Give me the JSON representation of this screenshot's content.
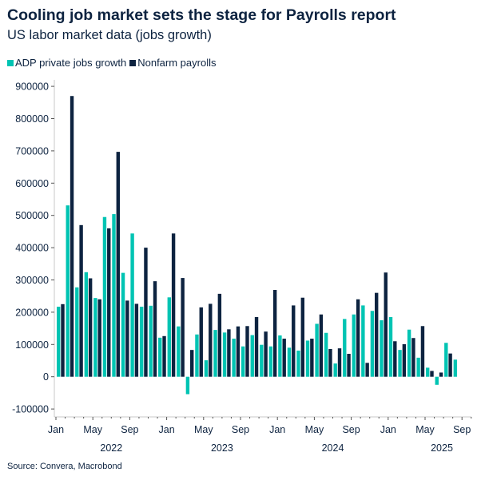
{
  "chart_data": {
    "type": "bar",
    "title": "Cooling job market sets the stage for Payrolls report",
    "subtitle": "US labor market data (jobs growth)",
    "source": "Source: Convera, Macrobond",
    "legend_position": "top-left",
    "grid": false,
    "ylim": [
      -100000,
      900000
    ],
    "yticks": [
      -100000,
      0,
      100000,
      200000,
      300000,
      400000,
      500000,
      600000,
      700000,
      800000,
      900000
    ],
    "xtick_labels": [
      "Jan",
      "May",
      "Sep",
      "Jan",
      "May",
      "Sep",
      "Jan",
      "May",
      "Sep",
      "Jan",
      "May",
      "Sep"
    ],
    "year_labels": [
      "2022",
      "2023",
      "2024",
      "2025"
    ],
    "categories": [
      "2022-01",
      "2022-02",
      "2022-03",
      "2022-04",
      "2022-05",
      "2022-06",
      "2022-07",
      "2022-08",
      "2022-09",
      "2022-10",
      "2022-11",
      "2022-12",
      "2023-01",
      "2023-02",
      "2023-03",
      "2023-04",
      "2023-05",
      "2023-06",
      "2023-07",
      "2023-08",
      "2023-09",
      "2023-10",
      "2023-11",
      "2023-12",
      "2024-01",
      "2024-02",
      "2024-03",
      "2024-04",
      "2024-05",
      "2024-06",
      "2024-07",
      "2024-08",
      "2024-09",
      "2024-10",
      "2024-11",
      "2024-12",
      "2025-01",
      "2025-02",
      "2025-03",
      "2025-04",
      "2025-05",
      "2025-06",
      "2025-07",
      "2025-08"
    ],
    "series": [
      {
        "name": "ADP private jobs growth",
        "color": "#00c4b3",
        "values": [
          217000,
          531000,
          277000,
          324000,
          244000,
          495000,
          504000,
          322000,
          444000,
          217000,
          220000,
          121000,
          246000,
          156000,
          -54000,
          131000,
          51000,
          145000,
          137000,
          118000,
          94000,
          129000,
          99000,
          94000,
          128000,
          90000,
          81000,
          112000,
          164000,
          136000,
          41000,
          179000,
          193000,
          221000,
          204000,
          175000,
          185000,
          83000,
          146000,
          59000,
          28000,
          -25000,
          105000,
          53000
        ]
      },
      {
        "name": "Nonfarm payrolls",
        "color": "#0d2340",
        "values": [
          225000,
          870000,
          470000,
          305000,
          240000,
          460000,
          697000,
          236000,
          226000,
          400000,
          296000,
          126000,
          444000,
          306000,
          83000,
          215000,
          226000,
          257000,
          147000,
          156000,
          157000,
          185000,
          140000,
          269000,
          118000,
          221000,
          245000,
          118000,
          193000,
          86000,
          88000,
          71000,
          240000,
          43000,
          260000,
          323000,
          110000,
          101000,
          120000,
          157000,
          18000,
          13000,
          72000,
          null
        ]
      }
    ]
  }
}
